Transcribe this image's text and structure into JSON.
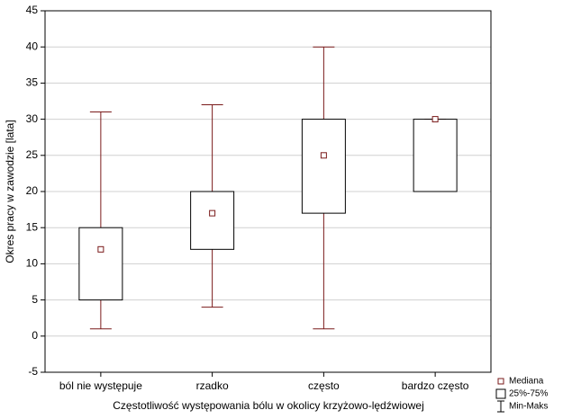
{
  "chart_data": {
    "type": "box",
    "x_label": "Częstotliwość występowania bólu w okolicy krzyżowo-lędźwiowej",
    "y_label": "Okres pracy w zawodzie [lata]",
    "categories": [
      "ból nie występuje",
      "rzadko",
      "często",
      "bardzo często"
    ],
    "boxes": [
      {
        "min": 1,
        "q1": 5,
        "median": 12,
        "q3": 15,
        "max": 31
      },
      {
        "min": 4,
        "q1": 12,
        "median": 17,
        "q3": 20,
        "max": 32
      },
      {
        "min": 1,
        "q1": 17,
        "median": 25,
        "q3": 30,
        "max": 40
      },
      {
        "min": 20,
        "q1": 20,
        "median": 30,
        "q3": 30,
        "max": 30
      }
    ],
    "color": "#7a1a1a",
    "ylim": [
      -5,
      45
    ],
    "yticks": [
      -5,
      0,
      5,
      10,
      15,
      20,
      25,
      30,
      35,
      40,
      45
    ],
    "grid": true,
    "legend": [
      "Mediana",
      "25%-75%",
      "Min-Maks"
    ],
    "legend_position": "bottom-right"
  }
}
